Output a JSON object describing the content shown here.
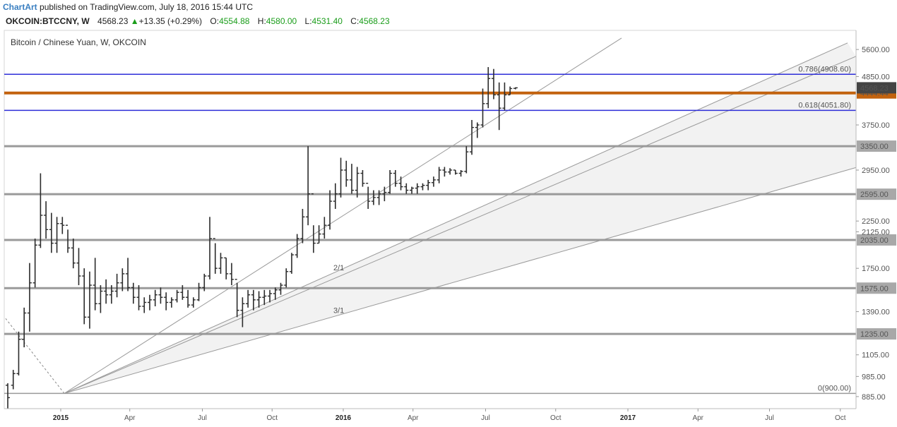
{
  "header": {
    "brand": "ChartArt",
    "published": "published on TradingView.com, July 18, 2016 15:44 UTC",
    "symbol": "OKCOIN:BTCCNY, W",
    "last": "4568.23",
    "change": "+13.35 (+0.29%)",
    "open_label": "O:",
    "open": "4554.88",
    "high_label": "H:",
    "high": "4580.00",
    "low_label": "L:",
    "low": "4531.40",
    "close_label": "C:",
    "close": "4568.23"
  },
  "colors": {
    "candle": "#2b2b2b",
    "horizontal_gray": "#9a9a9a",
    "fib_blue": "#2d2dd8",
    "resistance_orange": "#c2620e",
    "fan_line": "#9a9a9a",
    "price_badge": "#444444",
    "orange_badge": "#c2620e"
  },
  "chart_data": {
    "type": "ohlc",
    "title": "Bitcoin / Chinese Yuan, W, OKCOIN",
    "y_scale": "log",
    "ylim": [
      830,
      6200
    ],
    "y_ticks": [
      885,
      985,
      1105,
      1235,
      1390,
      1575,
      1750,
      2035,
      2125,
      2250,
      2595,
      2950,
      3350,
      3750,
      4444.44,
      4568.23,
      4850,
      5600
    ],
    "y_tick_labels": [
      "885.00",
      "985.00",
      "1105.00",
      "1235.00",
      "1390.00",
      "1575.00",
      "1750.00",
      "2035.00",
      "2125.00",
      "2250.00",
      "2595.00",
      "2950.00",
      "3350.00",
      "3750.00",
      "4444.44",
      "4568.23",
      "4850.00",
      "5600.00"
    ],
    "x_labels": [
      "2015",
      "Apr",
      "Jul",
      "Oct",
      "2016",
      "Apr",
      "Jul",
      "Oct",
      "2017",
      "Apr",
      "Jul",
      "Oct"
    ],
    "horizontal_levels": [
      {
        "value": 900,
        "label": "0(900.00)",
        "style": "gray-thin"
      },
      {
        "value": 1235,
        "label": "1235.00",
        "style": "gray"
      },
      {
        "value": 1575,
        "label": "1575.00",
        "style": "gray"
      },
      {
        "value": 2035,
        "label": "2035.00",
        "style": "gray"
      },
      {
        "value": 2595,
        "label": "2595.00",
        "style": "gray"
      },
      {
        "value": 3350,
        "label": "3350.00",
        "style": "gray"
      },
      {
        "value": 4051.8,
        "label": "0.618(4051.80)",
        "style": "blue"
      },
      {
        "value": 4444.44,
        "label": "4444.44",
        "style": "orange"
      },
      {
        "value": 4908.6,
        "label": "0.786(4908.60)",
        "style": "blue"
      }
    ],
    "gann_fan": {
      "origin": {
        "date": "2015-01-12",
        "value": 900
      },
      "labels": [
        "2/1",
        "3/1"
      ]
    },
    "bars": [
      [
        940,
        950,
        830,
        880
      ],
      [
        940,
        1020,
        920,
        1000
      ],
      [
        1000,
        1250,
        990,
        1200
      ],
      [
        1200,
        1420,
        1150,
        1380
      ],
      [
        1380,
        1800,
        1250,
        1620
      ],
      [
        1620,
        2050,
        1580,
        1980
      ],
      [
        1980,
        2900,
        1950,
        2320
      ],
      [
        2320,
        2500,
        2050,
        2150
      ],
      [
        2150,
        2350,
        1900,
        2000
      ],
      [
        2000,
        2300,
        1900,
        2220
      ],
      [
        2220,
        2300,
        2100,
        2200
      ],
      [
        2200,
        2150,
        1900,
        1950
      ],
      [
        1950,
        2050,
        1750,
        1800
      ],
      [
        1800,
        1950,
        1600,
        1680
      ],
      [
        1680,
        1750,
        1300,
        1350
      ],
      [
        1350,
        1720,
        1270,
        1600
      ],
      [
        1600,
        1850,
        1400,
        1450
      ],
      [
        1450,
        1600,
        1380,
        1550
      ],
      [
        1550,
        1650,
        1450,
        1520
      ],
      [
        1520,
        1600,
        1450,
        1550
      ],
      [
        1550,
        1700,
        1500,
        1620
      ],
      [
        1620,
        1750,
        1550,
        1700
      ],
      [
        1700,
        1850,
        1550,
        1580
      ],
      [
        1580,
        1620,
        1450,
        1500
      ],
      [
        1500,
        1600,
        1400,
        1430
      ],
      [
        1430,
        1500,
        1380,
        1460
      ],
      [
        1460,
        1520,
        1400,
        1480
      ],
      [
        1480,
        1560,
        1430,
        1520
      ],
      [
        1520,
        1580,
        1450,
        1500
      ],
      [
        1500,
        1540,
        1400,
        1460
      ],
      [
        1460,
        1500,
        1420,
        1480
      ],
      [
        1480,
        1560,
        1460,
        1540
      ],
      [
        1540,
        1600,
        1480,
        1500
      ],
      [
        1500,
        1560,
        1420,
        1440
      ],
      [
        1440,
        1500,
        1420,
        1480
      ],
      [
        1480,
        1620,
        1470,
        1580
      ],
      [
        1580,
        1700,
        1550,
        1680
      ],
      [
        1680,
        2300,
        1650,
        2050
      ],
      [
        2050,
        2000,
        1700,
        1750
      ],
      [
        1750,
        1900,
        1700,
        1850
      ],
      [
        1850,
        1850,
        1650,
        1700
      ],
      [
        1700,
        1800,
        1600,
        1650
      ],
      [
        1650,
        1620,
        1350,
        1400
      ],
      [
        1400,
        1500,
        1280,
        1450
      ],
      [
        1450,
        1560,
        1420,
        1520
      ],
      [
        1520,
        1560,
        1400,
        1480
      ],
      [
        1480,
        1550,
        1420,
        1500
      ],
      [
        1500,
        1560,
        1440,
        1510
      ],
      [
        1510,
        1560,
        1460,
        1530
      ],
      [
        1530,
        1580,
        1480,
        1560
      ],
      [
        1560,
        1620,
        1520,
        1600
      ],
      [
        1600,
        1750,
        1580,
        1720
      ],
      [
        1720,
        1900,
        1700,
        1880
      ],
      [
        1880,
        2100,
        1850,
        2050
      ],
      [
        2050,
        2400,
        2000,
        2300
      ],
      [
        2300,
        3350,
        2200,
        2600
      ],
      [
        2600,
        2200,
        1900,
        2000
      ],
      [
        2000,
        2200,
        2000,
        2100
      ],
      [
        2100,
        2300,
        2050,
        2200
      ],
      [
        2200,
        2650,
        2150,
        2500
      ],
      [
        2500,
        2750,
        2400,
        2600
      ],
      [
        2600,
        3150,
        2550,
        2950
      ],
      [
        2950,
        3100,
        2700,
        2800
      ],
      [
        2800,
        3050,
        2600,
        2650
      ],
      [
        2650,
        3000,
        2550,
        2900
      ],
      [
        2900,
        2950,
        2700,
        2750
      ],
      [
        2750,
        2700,
        2400,
        2500
      ],
      [
        2500,
        2650,
        2450,
        2550
      ],
      [
        2550,
        2650,
        2450,
        2600
      ],
      [
        2600,
        2700,
        2500,
        2620
      ],
      [
        2620,
        2950,
        2600,
        2900
      ],
      [
        2900,
        2950,
        2700,
        2750
      ],
      [
        2750,
        2850,
        2650,
        2700
      ],
      [
        2700,
        2750,
        2600,
        2650
      ],
      [
        2650,
        2700,
        2600,
        2680
      ],
      [
        2680,
        2750,
        2600,
        2700
      ],
      [
        2700,
        2750,
        2650,
        2720
      ],
      [
        2720,
        2800,
        2650,
        2760
      ],
      [
        2760,
        2850,
        2700,
        2800
      ],
      [
        2800,
        3000,
        2750,
        2950
      ],
      [
        2950,
        3000,
        2850,
        2920
      ],
      [
        2920,
        2980,
        2880,
        2950
      ],
      [
        2950,
        2950,
        2880,
        2900
      ],
      [
        2900,
        2950,
        2850,
        2930
      ],
      [
        2930,
        3350,
        2900,
        3250
      ],
      [
        3250,
        3850,
        3200,
        3700
      ],
      [
        3700,
        3800,
        3500,
        3750
      ],
      [
        3750,
        4550,
        3700,
        4200
      ],
      [
        4200,
        5100,
        4100,
        4800
      ],
      [
        4800,
        5050,
        4300,
        4400
      ],
      [
        4400,
        4700,
        3650,
        4100
      ],
      [
        4100,
        4700,
        4050,
        4400
      ],
      [
        4400,
        4600,
        4400,
        4550
      ],
      [
        4554.88,
        4580,
        4531.4,
        4568.23
      ]
    ]
  }
}
